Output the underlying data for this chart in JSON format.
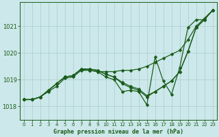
{
  "title": "Graphe pression niveau de la mer (hPa)",
  "bg_color": "#cce8ea",
  "grid_color": "#aacccc",
  "line_color": "#1a5c1a",
  "text_color": "#1a5c1a",
  "xlim": [
    -0.5,
    23.5
  ],
  "ylim": [
    1017.5,
    1021.9
  ],
  "yticks": [
    1018,
    1019,
    1020,
    1021
  ],
  "xticks": [
    0,
    1,
    2,
    3,
    4,
    5,
    6,
    7,
    8,
    9,
    10,
    11,
    12,
    13,
    14,
    15,
    16,
    17,
    18,
    19,
    20,
    21,
    22,
    23
  ],
  "series": [
    [
      1018.25,
      1018.25,
      1018.35,
      1018.55,
      1018.75,
      1019.05,
      1019.1,
      1019.35,
      1019.35,
      1019.3,
      1019.3,
      1019.3,
      1019.35,
      1019.35,
      1019.4,
      1019.5,
      1019.65,
      1019.8,
      1019.95,
      1020.1,
      1020.5,
      1021.0,
      1021.3,
      1021.6
    ],
    [
      1018.25,
      1018.25,
      1018.35,
      1018.6,
      1018.85,
      1019.1,
      1019.15,
      1019.4,
      1019.4,
      1019.35,
      1019.2,
      1019.1,
      1018.9,
      1018.75,
      1018.65,
      1018.4,
      1018.55,
      1018.75,
      1018.95,
      1019.3,
      1020.05,
      1020.95,
      1021.25,
      1021.6
    ],
    [
      1018.25,
      1018.25,
      1018.35,
      1018.6,
      1018.85,
      1019.1,
      1019.15,
      1019.4,
      1019.4,
      1019.35,
      1019.2,
      1019.1,
      1018.85,
      1018.7,
      1018.6,
      1018.35,
      1018.55,
      1018.75,
      1018.95,
      1019.3,
      1020.05,
      1020.95,
      1021.25,
      1021.6
    ],
    [
      1018.25,
      1018.25,
      1018.35,
      1018.6,
      1018.85,
      1019.1,
      1019.15,
      1019.4,
      1019.35,
      1019.3,
      1019.1,
      1019.0,
      1018.55,
      1018.6,
      1018.55,
      1018.05,
      1019.85,
      1018.95,
      1018.45,
      1019.45,
      1020.95,
      1021.25,
      1021.25,
      1021.6
    ]
  ],
  "marker": "D",
  "markersize": 2.5,
  "linewidth": 0.9
}
